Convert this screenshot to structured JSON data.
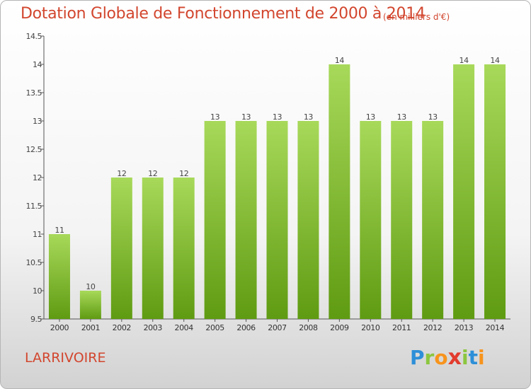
{
  "title": "Dotation Globale de Fonctionnement de 2000 à 2014",
  "subtitle": "(en milliers d'€)",
  "commune": "LARRIVOIRE",
  "logo": {
    "letters": [
      "P",
      "r",
      "o",
      "x",
      "i",
      "t",
      "i"
    ],
    "colors": [
      "#2d8fd8",
      "#8cc63f",
      "#f7941d",
      "#e23c2e",
      "#8cc63f",
      "#2d8fd8",
      "#f7941d"
    ]
  },
  "colors": {
    "bar_top": "#a8d95a",
    "bar_bottom": "#5f9b12",
    "text_accent": "#d2462e"
  },
  "chart_data": {
    "type": "bar",
    "categories": [
      "2000",
      "2001",
      "2002",
      "2003",
      "2004",
      "2005",
      "2006",
      "2007",
      "2008",
      "2009",
      "2010",
      "2011",
      "2012",
      "2013",
      "2014"
    ],
    "values": [
      11,
      10,
      12,
      12,
      12,
      13,
      13,
      13,
      13,
      14,
      13,
      13,
      13,
      14,
      14
    ],
    "data_labels": [
      "11",
      "10",
      "12",
      "12",
      "12",
      "13",
      "13",
      "13",
      "13",
      "14",
      "13",
      "13",
      "13",
      "14",
      "14"
    ],
    "ylim": [
      9.5,
      14.5
    ],
    "yticks": [
      9.5,
      10,
      10.5,
      11,
      11.5,
      12,
      12.5,
      13,
      13.5,
      14,
      14.5
    ],
    "ytick_labels": [
      "9.5",
      "10",
      "10.5",
      "11",
      "11.5",
      "12",
      "12.5",
      "13",
      "13.5",
      "14",
      "14.5"
    ],
    "grid": false,
    "legend": "none"
  }
}
